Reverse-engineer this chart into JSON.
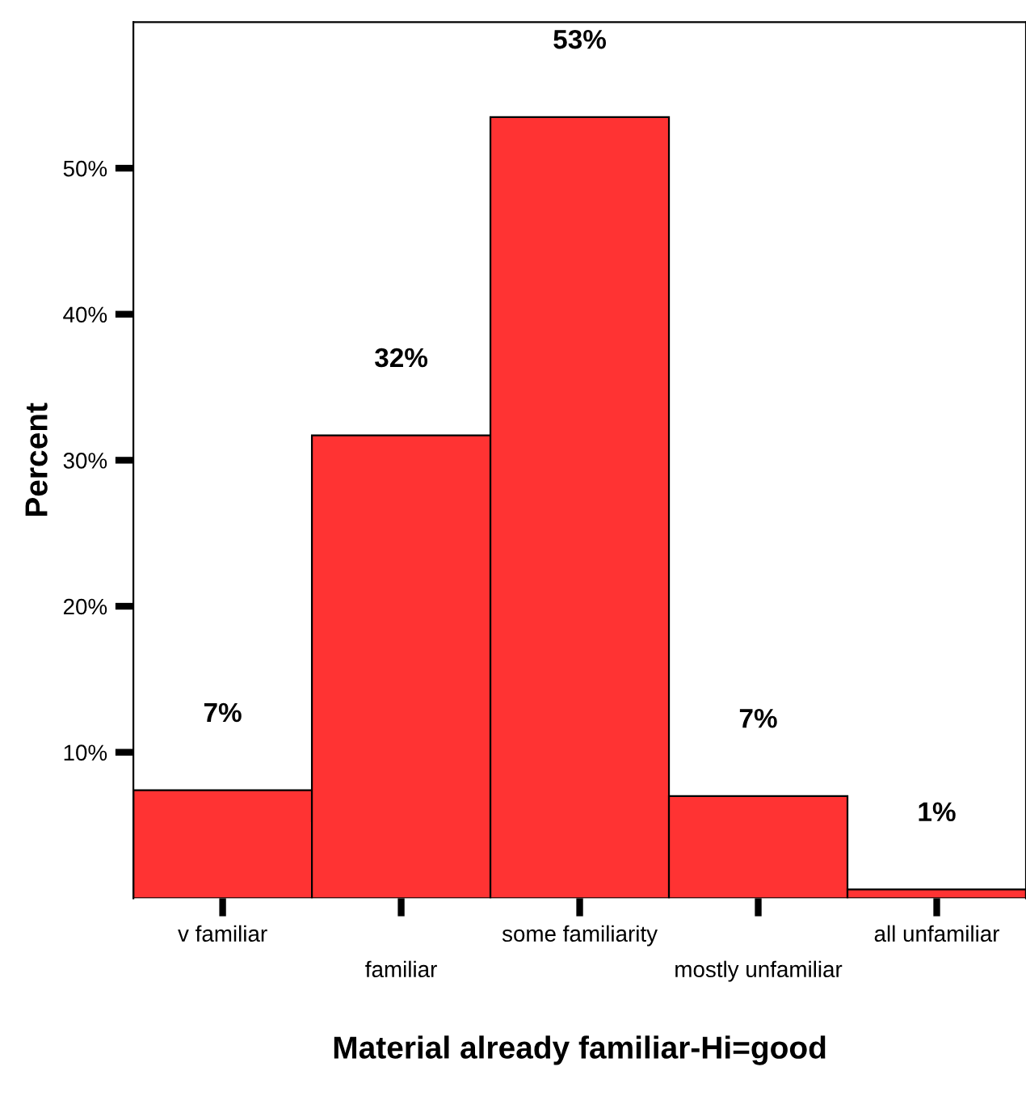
{
  "chart_data": {
    "type": "bar",
    "xlabel": "Material already familiar-Hi=good",
    "ylabel": "Percent",
    "categories": [
      "v familiar",
      "familiar",
      "some familiarity",
      "mostly unfamiliar",
      "all unfamiliar"
    ],
    "values": [
      7.4,
      31.7,
      53.5,
      7.0,
      0.6
    ],
    "value_labels": [
      "7%",
      "32%",
      "53%",
      "7%",
      "1%"
    ],
    "color": "#ff3333",
    "ylim": [
      0,
      60
    ],
    "yticks": [
      {
        "value": 10,
        "label": "10%"
      },
      {
        "value": 20,
        "label": "20%"
      },
      {
        "value": 30,
        "label": "30%"
      },
      {
        "value": 40,
        "label": "40%"
      },
      {
        "value": 50,
        "label": "50%"
      }
    ],
    "grid": false,
    "legend": false
  }
}
